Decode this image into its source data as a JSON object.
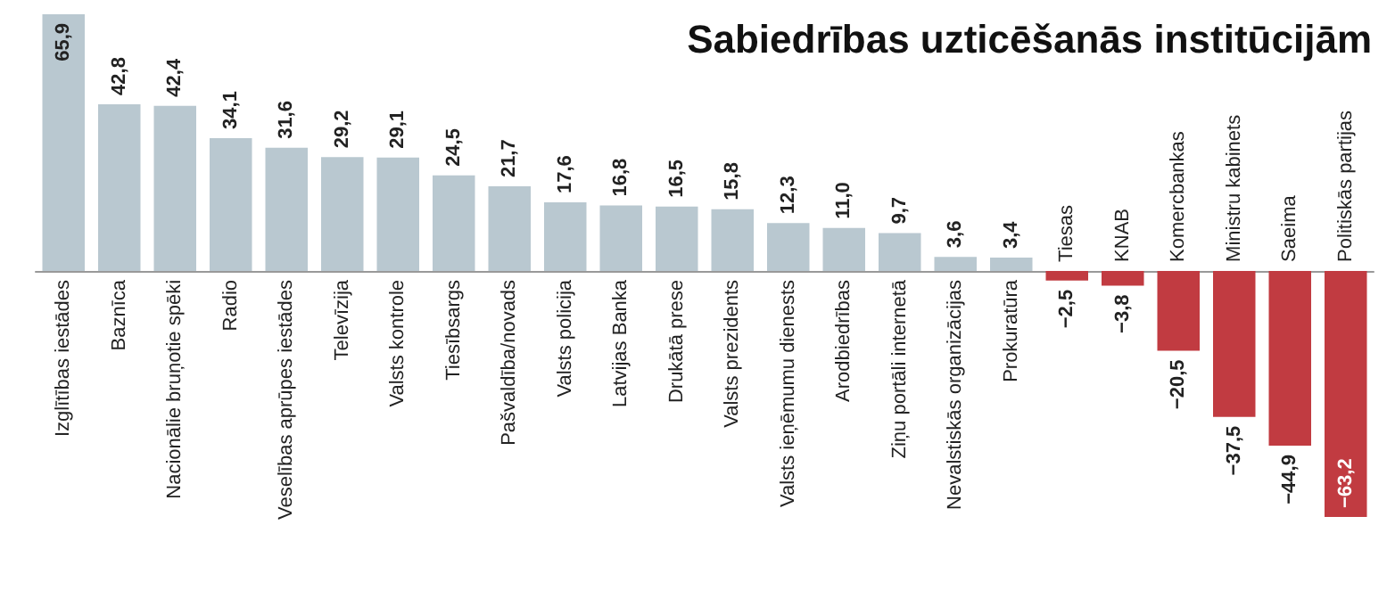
{
  "chart_data": {
    "type": "bar",
    "title": "Sabiedrības uzticēšanās institūcijām",
    "categories": [
      "Izglītības iestādes",
      "Baznīca",
      "Nacionālie bruņotie spēki",
      "Radio",
      "Veselības aprūpes iestādes",
      "Televīzija",
      "Valsts kontrole",
      "Tiesībsargs",
      "Pašvaldība/novads",
      "Valsts policija",
      "Latvijas Banka",
      "Drukātā prese",
      "Valsts prezidents",
      "Valsts ieņēmumu dienests",
      "Arodbiedrības",
      "Ziņu portāli internetā",
      "Nevalstiskās organizācijas",
      "Prokuratūra",
      "Tiesas",
      "KNAB",
      "Komercbankas",
      "Ministru kabinets",
      "Saeima",
      "Politiskās partijas"
    ],
    "values": [
      65.9,
      42.8,
      42.4,
      34.1,
      31.6,
      29.2,
      29.1,
      24.5,
      21.7,
      17.6,
      16.8,
      16.5,
      15.8,
      12.3,
      11.0,
      9.7,
      3.6,
      3.4,
      -2.5,
      -3.8,
      -20.5,
      -37.5,
      -44.9,
      -63.2
    ],
    "value_labels": [
      "65,9",
      "42,8",
      "42,4",
      "34,1",
      "31,6",
      "29,2",
      "29,1",
      "24,5",
      "21,7",
      "17,6",
      "16,8",
      "16,5",
      "15,8",
      "12,3",
      "11,0",
      "9,7",
      "3,6",
      "3,4",
      "−2,5",
      "−3,8",
      "−20,5",
      "−37,5",
      "−44,9",
      "−63,2"
    ],
    "colors": [
      "#b9c8d0",
      "#b9c8d0",
      "#b9c8d0",
      "#b9c8d0",
      "#b9c8d0",
      "#b9c8d0",
      "#b9c8d0",
      "#b9c8d0",
      "#b9c8d0",
      "#b9c8d0",
      "#b9c8d0",
      "#b9c8d0",
      "#b9c8d0",
      "#b9c8d0",
      "#b9c8d0",
      "#b9c8d0",
      "#b9c8d0",
      "#b9c8d0",
      "#c13b41",
      "#c13b41",
      "#c13b41",
      "#c13b41",
      "#c13b41",
      "#c13b41"
    ],
    "grid": false
  }
}
